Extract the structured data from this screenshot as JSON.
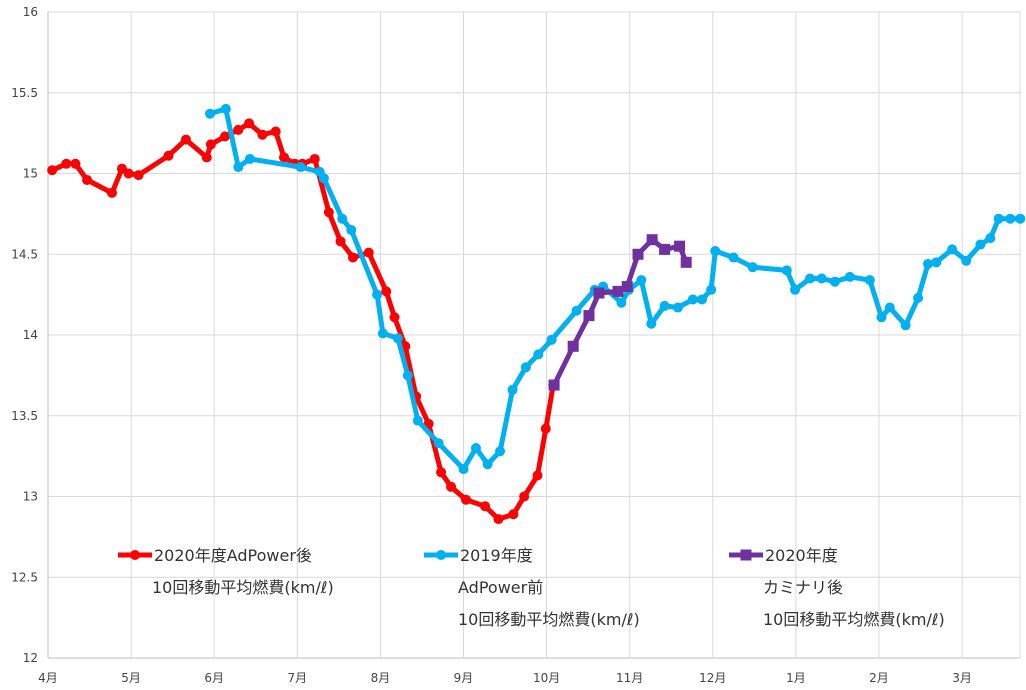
{
  "chart_data": {
    "type": "line",
    "title": "",
    "xlabel": "",
    "ylabel": "",
    "ylim": [
      12,
      16
    ],
    "y_ticks": [
      "12",
      "12.5",
      "13",
      "13.5",
      "14",
      "14.5",
      "15",
      "15.5",
      "16"
    ],
    "x_ticks": [
      "4月",
      "5月",
      "6月",
      "7月",
      "8月",
      "9月",
      "10月",
      "11月",
      "12月",
      "1月",
      "2月",
      "3月"
    ],
    "x_unit": "month index from 4月 (0 = 4月, 11 = 3月)",
    "grid": true,
    "legend_position": "bottom",
    "series": [
      {
        "name_lines": [
          "2020年度AdPower後",
          "10回移動平均燃費(km/ℓ)"
        ],
        "color": "#FF0000",
        "marker": "circle",
        "points": [
          [
            0.05,
            15.02
          ],
          [
            0.22,
            15.06
          ],
          [
            0.33,
            15.06
          ],
          [
            0.47,
            14.96
          ],
          [
            0.77,
            14.88
          ],
          [
            0.89,
            15.03
          ],
          [
            0.97,
            15.0
          ],
          [
            1.09,
            14.99
          ],
          [
            1.45,
            15.11
          ],
          [
            1.66,
            15.21
          ],
          [
            1.91,
            15.1
          ],
          [
            1.96,
            15.18
          ],
          [
            2.13,
            15.23
          ],
          [
            2.29,
            15.27
          ],
          [
            2.42,
            15.31
          ],
          [
            2.58,
            15.24
          ],
          [
            2.74,
            15.26
          ],
          [
            2.84,
            15.1
          ],
          [
            2.97,
            15.06
          ],
          [
            3.06,
            15.06
          ],
          [
            3.21,
            15.09
          ],
          [
            3.38,
            14.76
          ],
          [
            3.52,
            14.58
          ],
          [
            3.67,
            14.48
          ],
          [
            3.86,
            14.51
          ],
          [
            4.07,
            14.27
          ],
          [
            4.17,
            14.11
          ],
          [
            4.3,
            13.93
          ],
          [
            4.43,
            13.62
          ],
          [
            4.58,
            13.45
          ],
          [
            4.73,
            13.15
          ],
          [
            4.85,
            13.06
          ],
          [
            5.03,
            12.98
          ],
          [
            5.26,
            12.94
          ],
          [
            5.42,
            12.86
          ],
          [
            5.6,
            12.89
          ],
          [
            5.73,
            13.0
          ],
          [
            5.89,
            13.13
          ],
          [
            5.99,
            13.42
          ],
          [
            6.08,
            13.69
          ]
        ]
      },
      {
        "name_lines": [
          "2019年度",
          "AdPower前",
          "10回移動平均燃費(km/ℓ)"
        ],
        "color": "#00B0F0",
        "marker": "circle",
        "points": [
          [
            1.95,
            15.37
          ],
          [
            2.14,
            15.4
          ],
          [
            2.29,
            15.04
          ],
          [
            2.43,
            15.09
          ],
          [
            3.04,
            15.04
          ],
          [
            3.27,
            15.01
          ],
          [
            3.32,
            14.97
          ],
          [
            3.54,
            14.72
          ],
          [
            3.65,
            14.65
          ],
          [
            3.96,
            14.25
          ],
          [
            4.03,
            14.01
          ],
          [
            4.21,
            13.98
          ],
          [
            4.33,
            13.75
          ],
          [
            4.45,
            13.47
          ],
          [
            4.7,
            13.33
          ],
          [
            5.0,
            13.17
          ],
          [
            5.15,
            13.3
          ],
          [
            5.29,
            13.2
          ],
          [
            5.44,
            13.28
          ],
          [
            5.59,
            13.66
          ],
          [
            5.75,
            13.8
          ],
          [
            5.9,
            13.88
          ],
          [
            6.06,
            13.97
          ],
          [
            6.36,
            14.15
          ],
          [
            6.58,
            14.28
          ],
          [
            6.68,
            14.3
          ],
          [
            6.9,
            14.2
          ],
          [
            6.99,
            14.28
          ],
          [
            7.14,
            14.34
          ],
          [
            7.26,
            14.07
          ],
          [
            7.42,
            14.18
          ],
          [
            7.58,
            14.17
          ],
          [
            7.76,
            14.22
          ],
          [
            7.87,
            14.22
          ],
          [
            7.98,
            14.28
          ],
          [
            8.03,
            14.52
          ],
          [
            8.25,
            14.48
          ],
          [
            8.48,
            14.42
          ],
          [
            8.89,
            14.4
          ],
          [
            8.99,
            14.28
          ],
          [
            9.17,
            14.35
          ],
          [
            9.31,
            14.35
          ],
          [
            9.47,
            14.33
          ],
          [
            9.65,
            14.36
          ],
          [
            9.89,
            14.34
          ],
          [
            10.03,
            14.11
          ],
          [
            10.13,
            14.17
          ],
          [
            10.32,
            14.06
          ],
          [
            10.47,
            14.23
          ],
          [
            10.59,
            14.44
          ],
          [
            10.69,
            14.45
          ],
          [
            10.88,
            14.53
          ],
          [
            11.05,
            14.46
          ],
          [
            11.22,
            14.56
          ],
          [
            11.34,
            14.6
          ],
          [
            11.44,
            14.72
          ],
          [
            11.58,
            14.72
          ],
          [
            11.7,
            14.72
          ]
        ]
      },
      {
        "name_lines": [
          "2020年度",
          "カミナリ後",
          "10回移動平均燃費(km/ℓ)"
        ],
        "color": "#7030A0",
        "marker": "square",
        "points": [
          [
            6.09,
            13.69
          ],
          [
            6.32,
            13.93
          ],
          [
            6.51,
            14.12
          ],
          [
            6.63,
            14.26
          ],
          [
            6.86,
            14.27
          ],
          [
            6.97,
            14.3
          ],
          [
            7.1,
            14.5
          ],
          [
            7.27,
            14.59
          ],
          [
            7.42,
            14.53
          ],
          [
            7.6,
            14.55
          ],
          [
            7.68,
            14.45
          ]
        ]
      }
    ]
  }
}
